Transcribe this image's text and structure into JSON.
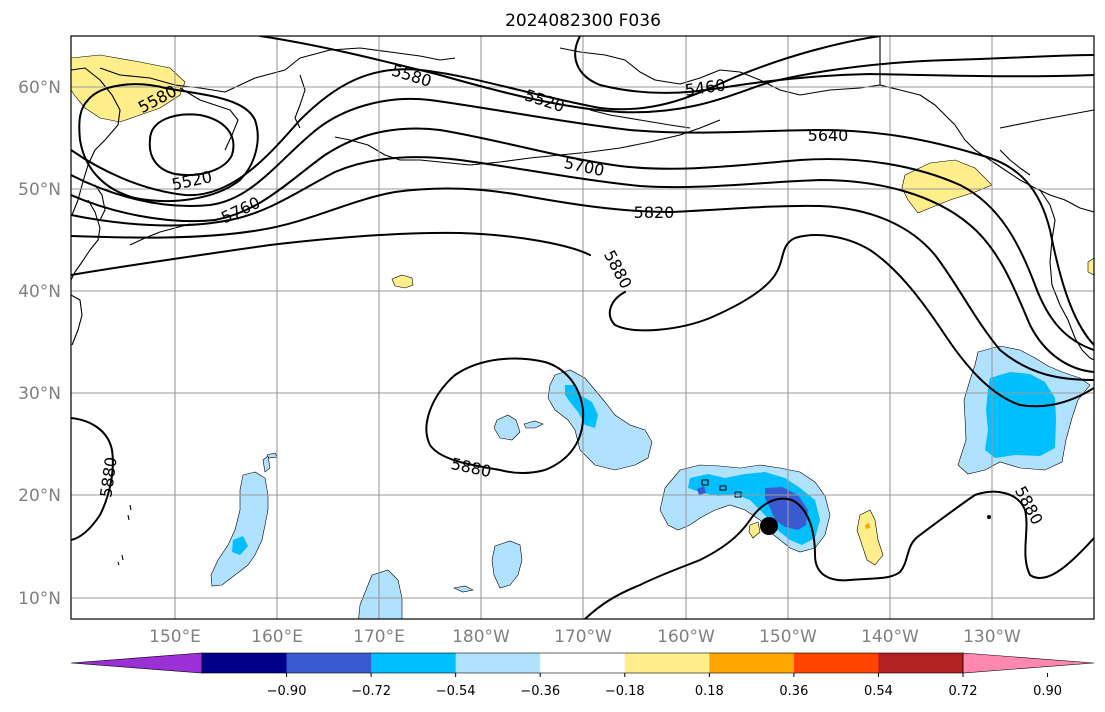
{
  "title": "2024082300 F036",
  "lat_labels": [
    "60°N",
    "50°N",
    "40°N",
    "30°N",
    "20°N",
    "10°N"
  ],
  "lon_labels": [
    "150°E",
    "160°E",
    "170°E",
    "180°W",
    "170°W",
    "160°W",
    "150°W",
    "140°W",
    "130°W"
  ],
  "contour_labels": {
    "c5580": "5580",
    "c5520a": "5520",
    "c5760": "5760",
    "c5580b": "5580",
    "c5520b": "5520",
    "c5460": "5460",
    "c5700": "5700",
    "c5640": "5640",
    "c5820": "5820",
    "c5880a": "5880",
    "c5880b": "5880",
    "c5880c": "5880",
    "c5880d": "5880"
  },
  "colorbar": {
    "colors": [
      "#9b30d6",
      "#00008b",
      "#3a5bd0",
      "#00bfff",
      "#b0e2ff",
      "#ffffff",
      "#ffee8a",
      "#ffa500",
      "#ff4500",
      "#b22222",
      "#ff88b0"
    ],
    "ticks": [
      "−0.90",
      "−0.72",
      "−0.54",
      "−0.36",
      "−0.18",
      "0.18",
      "0.36",
      "0.54",
      "0.72",
      "0.90"
    ]
  },
  "colors": {
    "light_blue": "#b0e2ff",
    "deep_sky_blue": "#00bfff",
    "royal_blue": "#3a5bd0",
    "light_yellow": "#ffee8a",
    "orange": "#ffa500"
  }
}
